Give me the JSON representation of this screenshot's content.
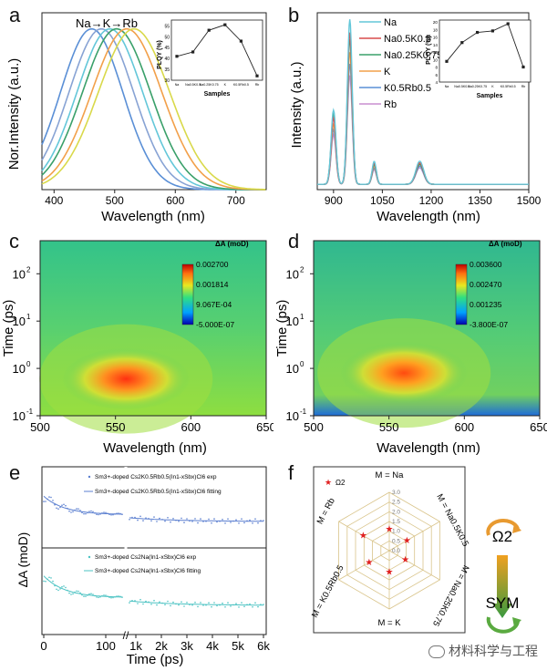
{
  "watermark": "材料科学与工程",
  "colors": {
    "Na": "#5a8fd6",
    "NaK": "#64c7d9",
    "NaK2": "#3aa06a",
    "K": "#f2a04a",
    "KRb": "#88a3d4",
    "Rb": "#c88fd0"
  },
  "chart_data": [
    {
      "id": "a",
      "type": "line",
      "panel_label": "a",
      "xlabel": "Wavelength (nm)",
      "ylabel": "Nor.Intensity (a.u.)",
      "xlim": [
        380,
        750
      ],
      "ylim": [
        0,
        1.1
      ],
      "xticks": [
        400,
        500,
        600,
        700
      ],
      "annotation": "Na→K→Rb",
      "series": [
        {
          "name": "Na",
          "peak": 462,
          "width": 55,
          "color": "#5a8fd6"
        },
        {
          "name": "Na0.5K0.5",
          "peak": 478,
          "width": 57,
          "color": "#88a3d4"
        },
        {
          "name": "Na0.25K0.75",
          "peak": 492,
          "width": 58,
          "color": "#64c7d9"
        },
        {
          "name": "K",
          "peak": 503,
          "width": 60,
          "color": "#3aa06a"
        },
        {
          "name": "K0.5Rb0.5",
          "peak": 520,
          "width": 62,
          "color": "#f2a04a"
        },
        {
          "name": "Rb",
          "peak": 532,
          "width": 63,
          "color": "#d9d94a"
        }
      ],
      "inset": {
        "ylabel": "PLQY (%)",
        "xlabel": "Samples",
        "categories": [
          "Na",
          "Na0.5K0.5",
          "Na0.25K0.75",
          "K",
          "K0.5Rb0.5",
          "Rb"
        ],
        "yticks": [
          30,
          35,
          40,
          45,
          50,
          55
        ],
        "ylim": [
          30,
          56
        ],
        "values": [
          41,
          43,
          53,
          55.5,
          48,
          32
        ]
      }
    },
    {
      "id": "b",
      "type": "line",
      "panel_label": "b",
      "xlabel": "Wavelength (nm)",
      "ylabel": "Intensity (a.u.)",
      "xlim": [
        850,
        1500
      ],
      "ylim": [
        0,
        1.05
      ],
      "xticks": [
        900,
        1050,
        1200,
        1350,
        1500
      ],
      "legend": [
        "Na",
        "Na0.5K0.5",
        "Na0.25K0.75",
        "K",
        "K0.5Rb0.5",
        "Rb"
      ],
      "peaks": [
        {
          "x": 900,
          "w": 8,
          "amps": [
            0.45,
            0.4,
            0.42,
            0.36,
            0.33,
            0.3
          ]
        },
        {
          "x": 950,
          "w": 8,
          "amps": [
            1.0,
            0.92,
            0.88,
            0.8,
            0.73,
            0.66
          ]
        },
        {
          "x": 1025,
          "w": 7,
          "amps": [
            0.14,
            0.13,
            0.12,
            0.11,
            0.1,
            0.09
          ]
        },
        {
          "x": 1165,
          "w": 13,
          "amps": [
            0.14,
            0.13,
            0.12,
            0.12,
            0.11,
            0.1
          ]
        }
      ],
      "series_colors": [
        "#64c7d9",
        "#d94b4b",
        "#3aa06a",
        "#f2a04a",
        "#5a8fd6",
        "#c88fd0"
      ],
      "inset": {
        "ylabel": "PLQY (%)",
        "xlabel": "Samples",
        "categories": [
          "Na",
          "Na0.5K0.5",
          "Na0.25K0.75",
          "K",
          "K0.5Rb0.5",
          "Rb"
        ],
        "yticks": [
          4,
          6,
          8,
          10,
          12,
          14,
          16,
          18,
          20
        ],
        "ylim": [
          4,
          20
        ],
        "values": [
          9.5,
          14.5,
          17.2,
          17.6,
          19.5,
          8
        ]
      }
    },
    {
      "id": "c",
      "type": "heatmap",
      "panel_label": "c",
      "xlabel": "Wavelength (nm)",
      "ylabel": "Time (ps)",
      "xlim": [
        500,
        650
      ],
      "xticks": [
        500,
        550,
        600,
        650
      ],
      "yscale": "log",
      "ylim": [
        0.1,
        500
      ],
      "yticks": [
        "10^-1",
        "10^0",
        "10^1",
        "10^2"
      ],
      "colorbar_title": "ΔA (moD)",
      "colorbar_ticks": [
        "0.002700",
        "0.001814",
        "9.067E-04",
        "-5.000E-07"
      ],
      "hot_center": [
        557,
        0.6
      ]
    },
    {
      "id": "d",
      "type": "heatmap",
      "panel_label": "d",
      "xlabel": "Wavelength (nm)",
      "ylabel": "Time (ps)",
      "xlim": [
        500,
        650
      ],
      "xticks": [
        500,
        550,
        600,
        650
      ],
      "yscale": "log",
      "ylim": [
        0.1,
        500
      ],
      "yticks": [
        "10^-1",
        "10^0",
        "10^1",
        "10^2"
      ],
      "colorbar_title": "ΔA (moD)",
      "colorbar_ticks": [
        "0.003600",
        "0.002470",
        "0.001235",
        "-3.800E-07"
      ],
      "hot_center": [
        560,
        0.8
      ]
    },
    {
      "id": "e",
      "type": "scatter",
      "panel_label": "e",
      "xlabel": "Time (ps)",
      "ylabel": "ΔA (moD)",
      "xticks_left": [
        "0",
        "100"
      ],
      "xticks_right": [
        "1k",
        "2k",
        "3k",
        "4k",
        "5k",
        "6k"
      ],
      "legend_top": [
        "Sm3+-doped Cs2K0.5Rb0.5(In1-xSbx)Cl6 exp",
        "Sm3+-doped Cs2K0.5Rb0.5(In1-xSbx)Cl6 fitting"
      ],
      "legend_bottom": [
        "Sm3+-doped Cs2Na(In1-xSbx)Cl6 exp",
        "Sm3+-doped Cs2Na(In1-xSbx)Cl6 fitting"
      ],
      "color_top": "#5b7fd0",
      "color_bottom": "#4cc3c3"
    },
    {
      "id": "f",
      "type": "radar",
      "panel_label": "f",
      "axes": [
        "M = Na",
        "M = Na0.5K0.5",
        "M = Na0.25K0.75",
        "M = K",
        "M = K0.5Rb0.5",
        "M = Rb"
      ],
      "rticks": [
        "0.0",
        "0.5",
        "1.0",
        "1.5",
        "2.0",
        "2.5",
        "3.0"
      ],
      "rmax": 3.0,
      "series_name": "Ω2",
      "values": [
        1.1,
        1.05,
        0.95,
        1.1,
        1.2,
        1.55
      ],
      "side_top": "Ω2",
      "side_bottom": "SYM"
    }
  ]
}
